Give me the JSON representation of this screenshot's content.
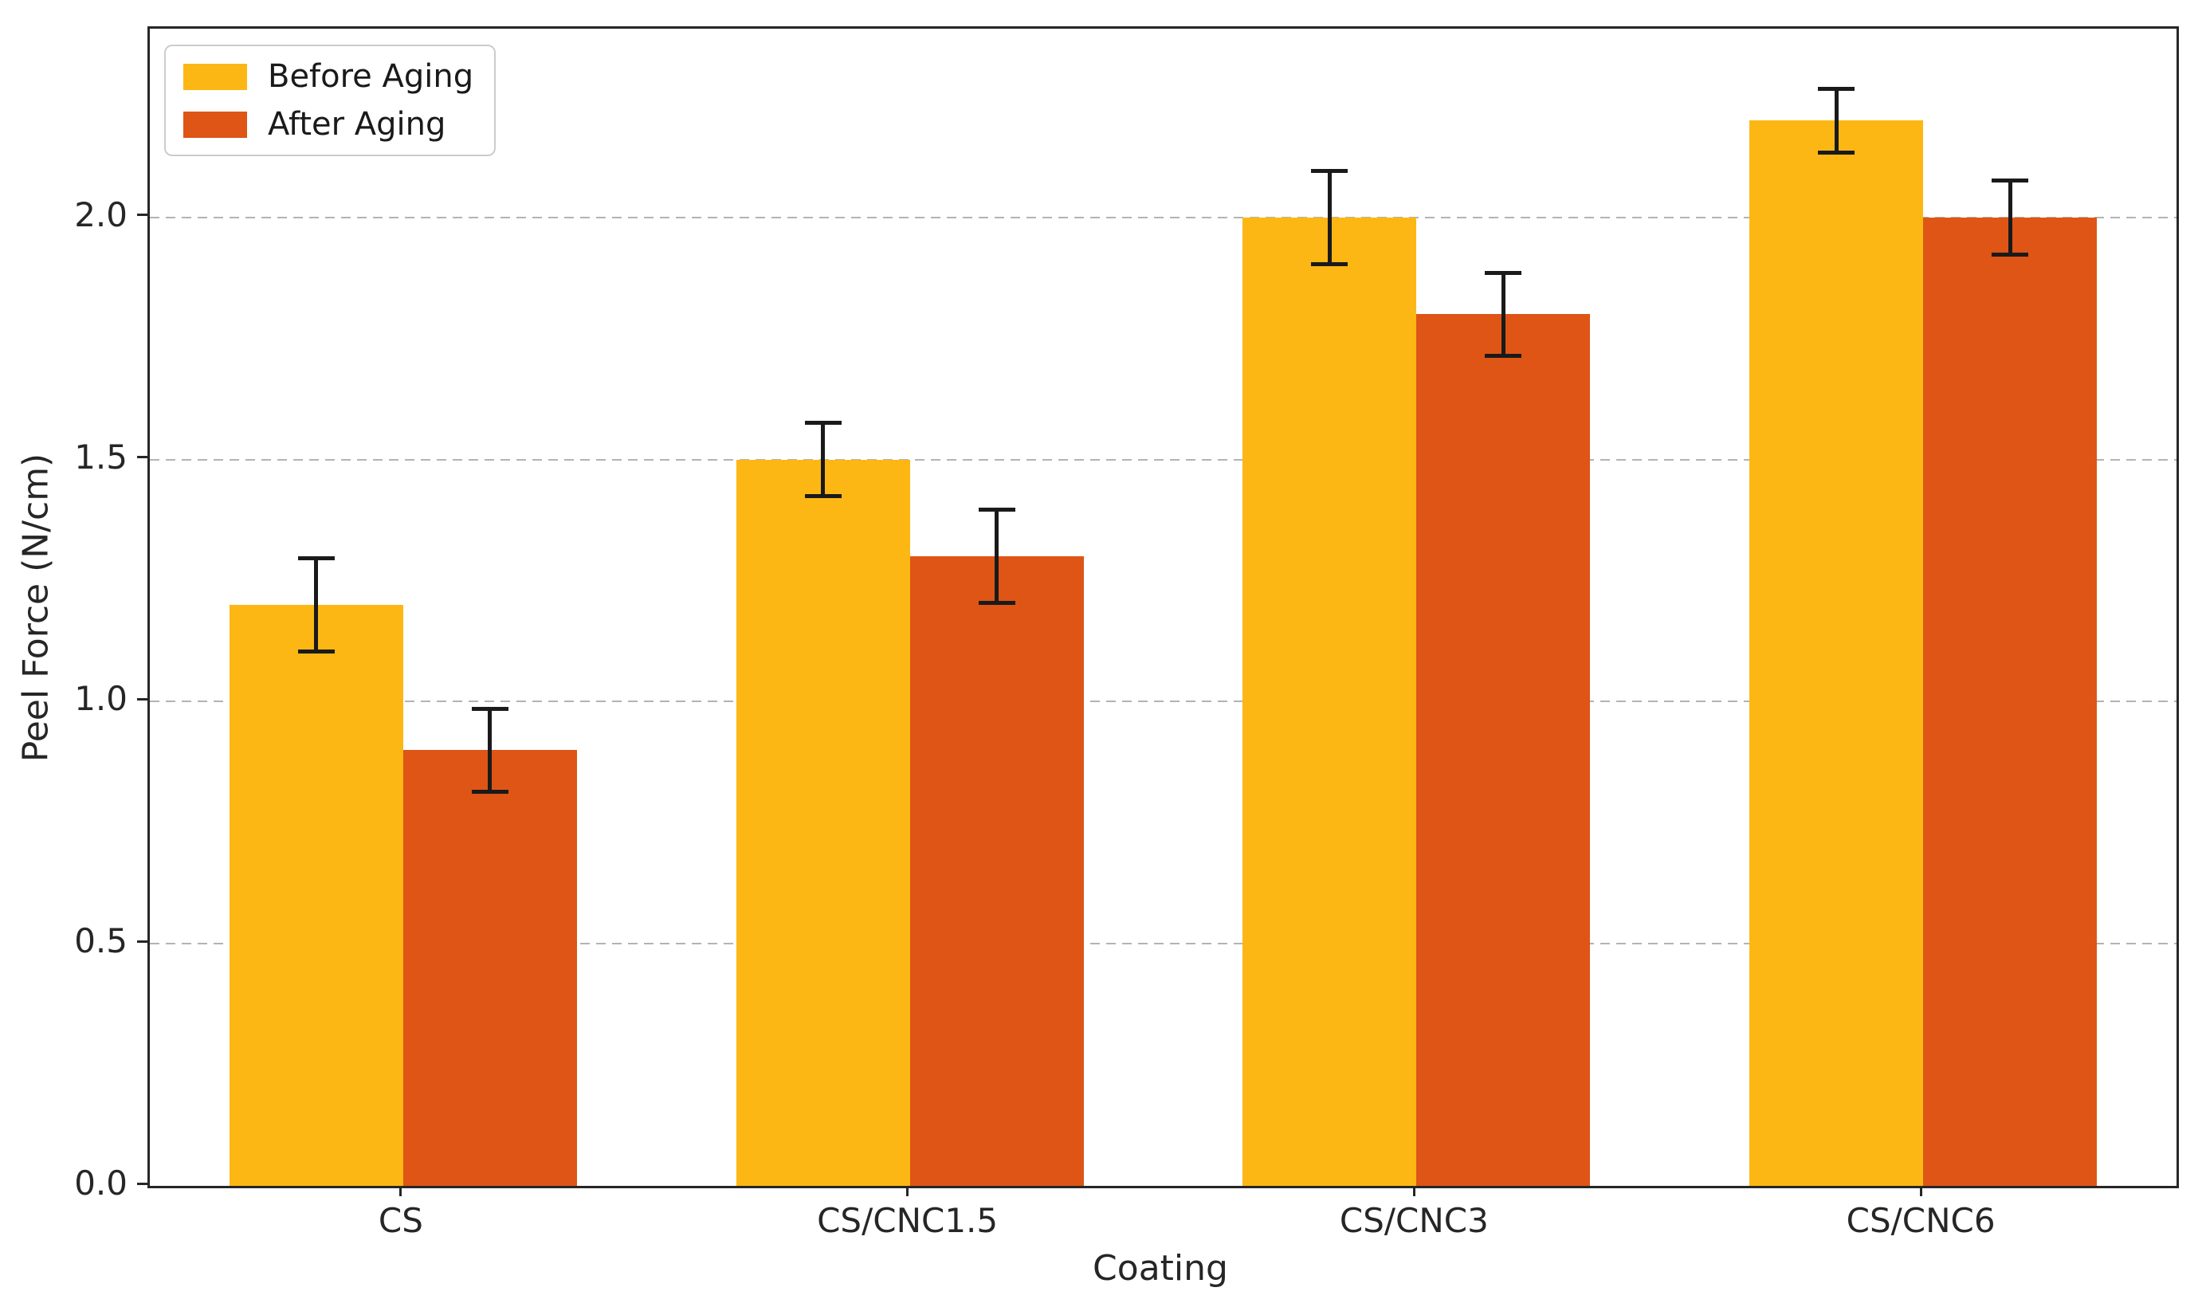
{
  "chart_data": {
    "type": "bar",
    "title": "",
    "xlabel": "Coating",
    "ylabel": "Peel Force (N/cm)",
    "categories": [
      "CS",
      "CS/CNC1.5",
      "CS/CNC3",
      "CS/CNC6"
    ],
    "series": [
      {
        "name": "Before Aging",
        "color": "#FDB714",
        "values": [
          1.2,
          1.5,
          2.0,
          2.2
        ],
        "errors": [
          0.1,
          0.08,
          0.1,
          0.07
        ]
      },
      {
        "name": "After Aging",
        "color": "#DE5516",
        "values": [
          0.9,
          1.3,
          1.8,
          2.0
        ],
        "errors": [
          0.09,
          0.1,
          0.09,
          0.08
        ]
      }
    ],
    "ylim": [
      0,
      2.39
    ],
    "yticks": [
      0.0,
      0.5,
      1.0,
      1.5,
      2.0
    ],
    "ytick_labels": [
      "0.0",
      "0.5",
      "1.0",
      "1.5",
      "2.0"
    ],
    "grid": "horizontal-dashed",
    "gridline_color": "#b3b3b3",
    "axis_color": "#262626",
    "errorbar_color": "#1a1a1a",
    "legend_position": "upper-left",
    "legend_border_color": "#cccccc"
  }
}
